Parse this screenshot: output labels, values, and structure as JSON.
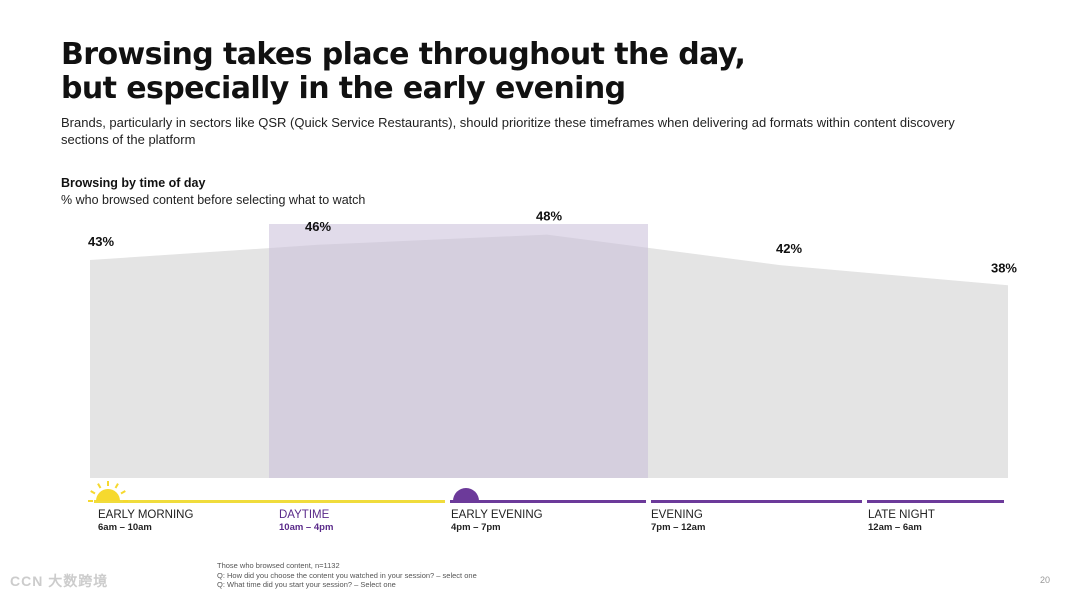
{
  "title_line1": "Browsing takes place throughout the day,",
  "title_line2": "but especially in the early evening",
  "subtitle": "Brands, particularly in sectors like QSR (Quick Service Restaurants), should prioritize these timeframes when delivering ad formats within content discovery sections of the platform",
  "chart_heading": "Browsing by time of day",
  "chart_subheading": "% who browsed content before selecting what to watch",
  "chart_data": {
    "type": "area",
    "title": "Browsing by time of day",
    "subtitle": "% who browsed content before selecting what to watch",
    "categories": [
      "EARLY MORNING",
      "DAYTIME",
      "EARLY EVENING",
      "EVENING",
      "LATE NIGHT"
    ],
    "time_ranges": [
      "6am – 10am",
      "10am – 4pm",
      "4pm – 7pm",
      "7pm – 12am",
      "12am – 6am"
    ],
    "values": [
      43,
      46,
      48,
      42,
      38
    ],
    "value_labels": [
      "43%",
      "46%",
      "48%",
      "42%",
      "38%"
    ],
    "ylim": [
      0,
      50
    ],
    "highlight_range": [
      "DAYTIME",
      "EARLY EVENING"
    ],
    "grid": false,
    "colors": {
      "area": "#e4e4e4",
      "highlight": "#c9bdd8",
      "daytime_bar": "#f0dc3c",
      "evening_bar": "#6c3a9a",
      "daytime_label": "#5a2a8a",
      "sun": "#f6d92e",
      "moon": "#6c3a9a"
    }
  },
  "footnote_lines": [
    "Those who browsed content, n=1132",
    "Q: How did you choose the content you watched in your session? – select one",
    "Q: What time did you start your session? – Select one"
  ],
  "page_number": "20",
  "watermark": "CCN  大数跨境"
}
